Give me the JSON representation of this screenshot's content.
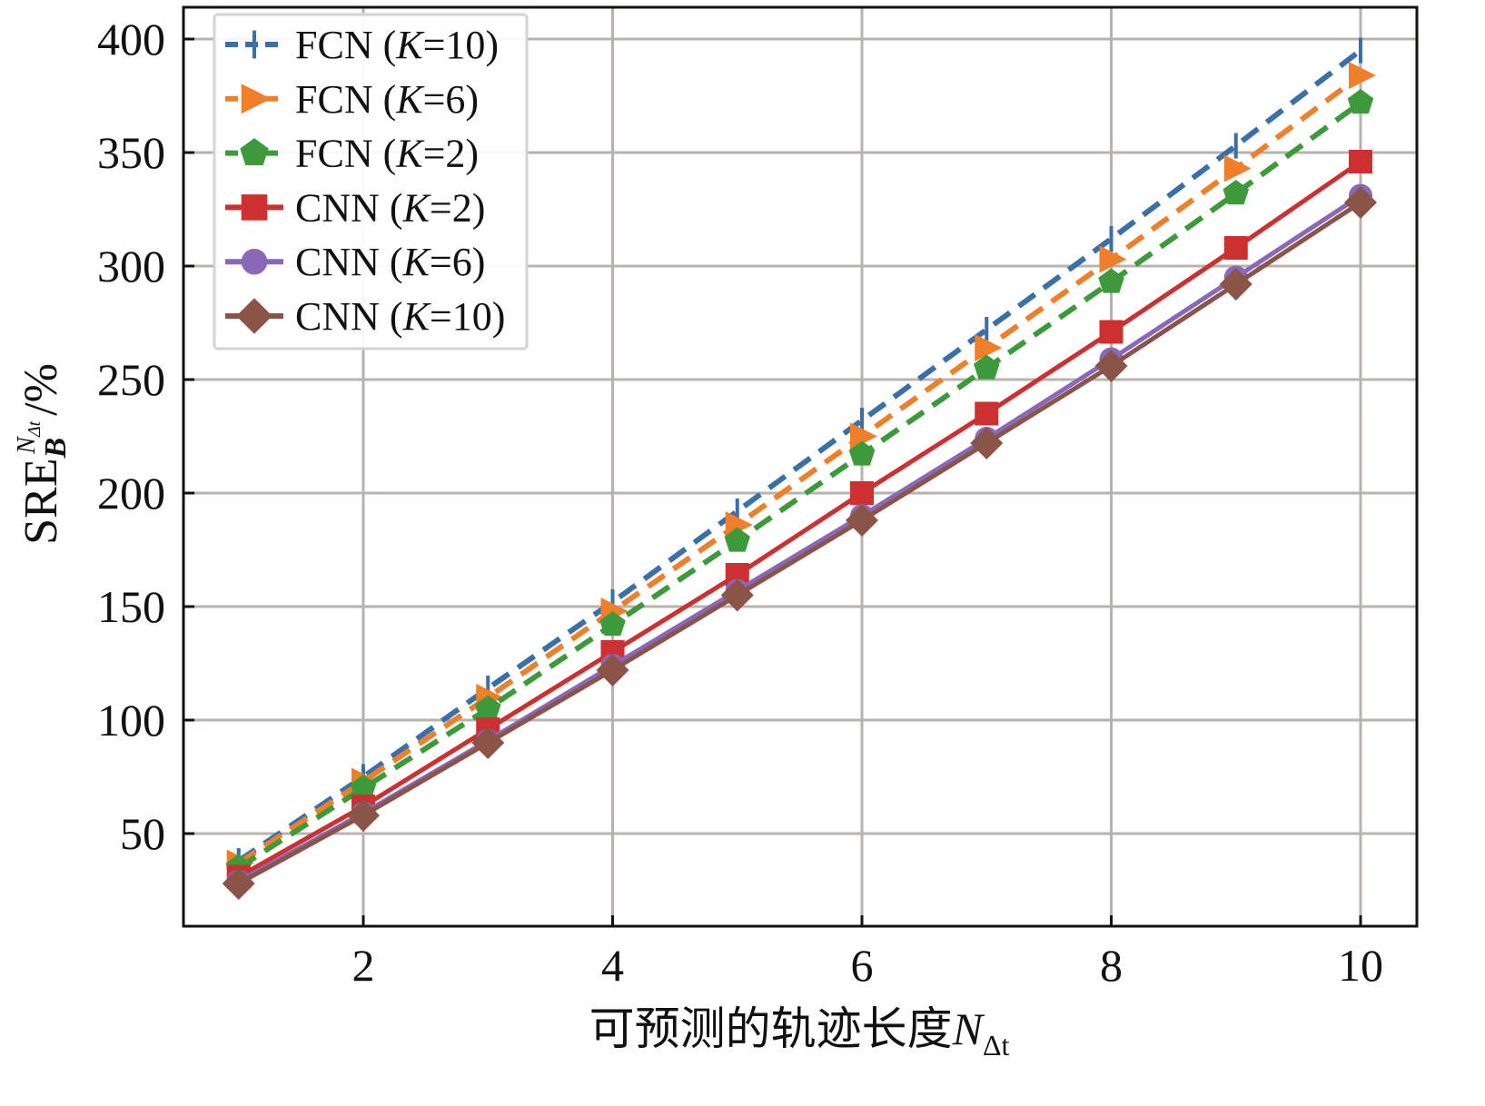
{
  "chart_data": {
    "type": "line",
    "title": "",
    "xlabel": "可预测的轨迹长度N_Δt",
    "xlabel_parts": {
      "text": "可预测的轨迹长度",
      "var": "N",
      "sub": "Δt"
    },
    "ylabel": "SRE_B^{N_Δt}/%",
    "ylabel_parts": {
      "base": "SRE",
      "sub": "B",
      "sup": "N",
      "sup_sub": "Δt",
      "unit": "/%"
    },
    "x": [
      1,
      2,
      3,
      4,
      5,
      6,
      7,
      8,
      9,
      10
    ],
    "xticks": [
      2,
      4,
      6,
      8,
      10
    ],
    "yticks": [
      50,
      100,
      150,
      200,
      250,
      300,
      350,
      400
    ],
    "xlim": [
      0.5,
      11.2
    ],
    "ylim": [
      9,
      414
    ],
    "grid": true,
    "legend_position": "upper left",
    "series": [
      {
        "name": "FCN (K=10)",
        "model": "FCN",
        "k": "10",
        "color": "#3a6fa8",
        "dash": true,
        "marker": "tick",
        "values": [
          38,
          75,
          114,
          152,
          192,
          232,
          272,
          312,
          353,
          395
        ]
      },
      {
        "name": "FCN (K=6)",
        "model": "FCN",
        "k": "6",
        "color": "#f07f2a",
        "dash": true,
        "marker": "triangle-right",
        "values": [
          37,
          73,
          110,
          148,
          186,
          225,
          264,
          303,
          343,
          384
        ]
      },
      {
        "name": "FCN (K=2)",
        "model": "FCN",
        "k": "2",
        "color": "#3c9a3a",
        "dash": true,
        "marker": "pentagon",
        "values": [
          35,
          70,
          105,
          142,
          179,
          217,
          255,
          293,
          332,
          372
        ]
      },
      {
        "name": "CNN (K=2)",
        "model": "CNN",
        "k": "2",
        "color": "#cc3030",
        "dash": false,
        "marker": "square",
        "values": [
          31,
          62,
          96,
          130,
          164,
          200,
          235,
          271,
          308,
          346
        ]
      },
      {
        "name": "CNN (K=6)",
        "model": "CNN",
        "k": "6",
        "color": "#8a68b8",
        "dash": false,
        "marker": "circle",
        "values": [
          29,
          59,
          91,
          124,
          157,
          190,
          224,
          259,
          295,
          331
        ]
      },
      {
        "name": "CNN (K=10)",
        "model": "CNN",
        "k": "10",
        "color": "#8a5448",
        "dash": false,
        "marker": "diamond",
        "values": [
          28,
          58,
          90,
          122,
          155,
          188,
          222,
          256,
          292,
          328
        ]
      }
    ]
  }
}
